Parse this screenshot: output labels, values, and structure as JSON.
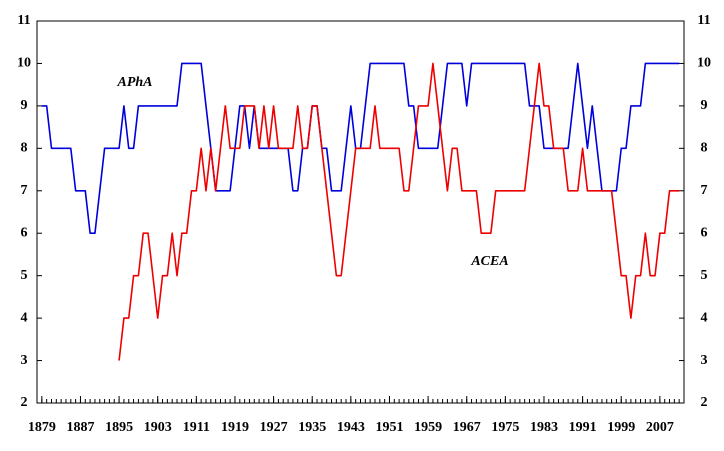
{
  "chart_data": {
    "type": "line",
    "x": [
      1879,
      1880,
      1881,
      1882,
      1883,
      1884,
      1885,
      1886,
      1887,
      1888,
      1889,
      1890,
      1891,
      1892,
      1893,
      1894,
      1895,
      1896,
      1897,
      1898,
      1899,
      1900,
      1901,
      1902,
      1903,
      1904,
      1905,
      1906,
      1907,
      1908,
      1909,
      1910,
      1911,
      1912,
      1913,
      1914,
      1915,
      1916,
      1917,
      1918,
      1919,
      1920,
      1921,
      1922,
      1923,
      1924,
      1925,
      1926,
      1927,
      1928,
      1929,
      1930,
      1931,
      1932,
      1933,
      1934,
      1935,
      1936,
      1937,
      1938,
      1939,
      1940,
      1941,
      1942,
      1943,
      1944,
      1945,
      1946,
      1947,
      1948,
      1949,
      1950,
      1951,
      1952,
      1953,
      1954,
      1955,
      1956,
      1957,
      1958,
      1959,
      1960,
      1961,
      1962,
      1963,
      1964,
      1965,
      1966,
      1967,
      1968,
      1969,
      1970,
      1971,
      1972,
      1973,
      1974,
      1975,
      1976,
      1977,
      1978,
      1979,
      1980,
      1981,
      1982,
      1983,
      1984,
      1985,
      1986,
      1987,
      1988,
      1989,
      1990,
      1991,
      1992,
      1993,
      1994,
      1995,
      1996,
      1997,
      1998,
      1999,
      2000,
      2001,
      2002,
      2003,
      2004,
      2005,
      2006,
      2007,
      2008,
      2009,
      2010,
      2011
    ],
    "series": [
      {
        "name": "APhA",
        "color": "#0000dd",
        "values": [
          9,
          9,
          8,
          8,
          8,
          8,
          8,
          7,
          7,
          7,
          6,
          6,
          7,
          8,
          8,
          8,
          8,
          9,
          8,
          8,
          9,
          9,
          9,
          9,
          9,
          9,
          9,
          9,
          9,
          10,
          10,
          10,
          10,
          10,
          9,
          8,
          7,
          7,
          7,
          7,
          8,
          9,
          9,
          8,
          9,
          8,
          8,
          8,
          8,
          8,
          8,
          8,
          7,
          7,
          8,
          8,
          9,
          9,
          8,
          8,
          7,
          7,
          7,
          8,
          9,
          8,
          8,
          9,
          10,
          10,
          10,
          10,
          10,
          10,
          10,
          10,
          9,
          9,
          8,
          8,
          8,
          8,
          8,
          9,
          10,
          10,
          10,
          10,
          9,
          10,
          10,
          10,
          10,
          10,
          10,
          10,
          10,
          10,
          10,
          10,
          10,
          9,
          9,
          9,
          8,
          8,
          8,
          8,
          8,
          8,
          9,
          10,
          9,
          8,
          9,
          8,
          7,
          7,
          7,
          7,
          8,
          8,
          9,
          9,
          9,
          10,
          10,
          10,
          10,
          10,
          10,
          10,
          10
        ]
      },
      {
        "name": "ACEA",
        "color": "#ee0000",
        "values": [
          null,
          null,
          null,
          null,
          null,
          null,
          null,
          null,
          null,
          null,
          null,
          null,
          null,
          null,
          null,
          null,
          3,
          4,
          4,
          5,
          5,
          6,
          6,
          5,
          4,
          5,
          5,
          6,
          5,
          6,
          6,
          7,
          7,
          8,
          7,
          8,
          7,
          8,
          9,
          8,
          8,
          8,
          9,
          9,
          9,
          8,
          9,
          8,
          9,
          8,
          8,
          8,
          8,
          9,
          8,
          8,
          9,
          9,
          8,
          7,
          6,
          5,
          5,
          6,
          7,
          8,
          8,
          8,
          8,
          9,
          8,
          8,
          8,
          8,
          8,
          7,
          7,
          8,
          9,
          9,
          9,
          10,
          9,
          8,
          7,
          8,
          8,
          7,
          7,
          7,
          7,
          6,
          6,
          6,
          7,
          7,
          7,
          7,
          7,
          7,
          7,
          8,
          9,
          10,
          9,
          9,
          8,
          8,
          8,
          7,
          7,
          7,
          8,
          7,
          7,
          7,
          7,
          7,
          7,
          6,
          5,
          5,
          4,
          5,
          5,
          6,
          5,
          5,
          6,
          6,
          7,
          7,
          7
        ]
      }
    ],
    "xlim": [
      1878,
      2012
    ],
    "xticks": [
      1879,
      1887,
      1895,
      1903,
      1911,
      1919,
      1927,
      1935,
      1943,
      1951,
      1959,
      1967,
      1975,
      1983,
      1991,
      1999,
      2007
    ],
    "ylim": [
      2,
      11
    ],
    "yticks": [
      2,
      3,
      4,
      5,
      6,
      7,
      8,
      9,
      10,
      11
    ],
    "y2lim": [
      2,
      11
    ],
    "y2ticks": [
      2,
      3,
      4,
      5,
      6,
      7,
      8,
      9,
      10,
      11
    ]
  }
}
